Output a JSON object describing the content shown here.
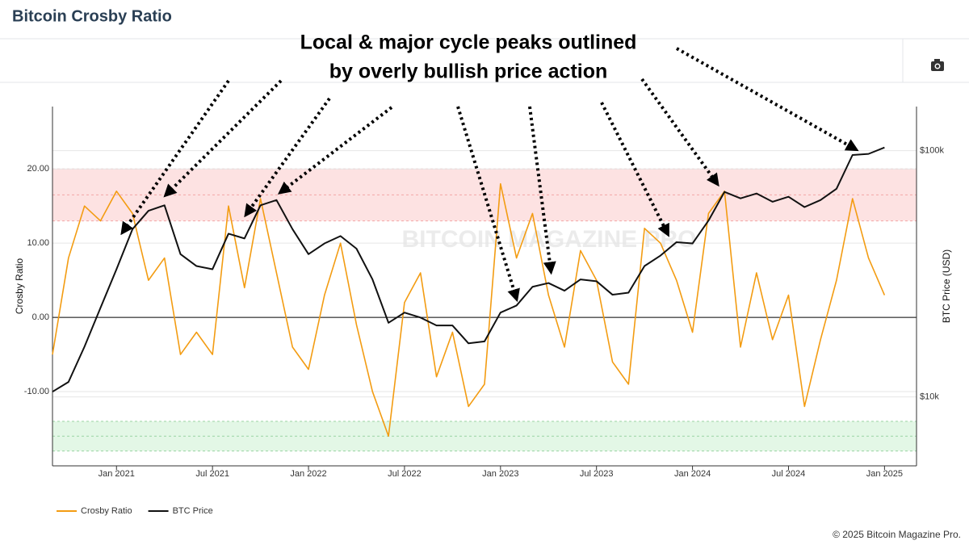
{
  "header": {
    "title": "Bitcoin Crosby Ratio"
  },
  "chart_data": {
    "type": "line",
    "annotation": [
      "Local & major cycle peaks outlined",
      "by overly bullish price action"
    ],
    "watermark": "BITCOIN MAGAZINE PRO",
    "y_label": "Crosby Ratio",
    "y2_label": "BTC Price (USD)",
    "x": [
      "2020-09",
      "2020-10",
      "2020-11",
      "2020-12",
      "2021-01",
      "2021-02",
      "2021-03",
      "2021-04",
      "2021-05",
      "2021-06",
      "2021-07",
      "2021-08",
      "2021-09",
      "2021-10",
      "2021-11",
      "2021-12",
      "2022-01",
      "2022-02",
      "2022-03",
      "2022-04",
      "2022-05",
      "2022-06",
      "2022-07",
      "2022-08",
      "2022-09",
      "2022-10",
      "2022-11",
      "2022-12",
      "2023-01",
      "2023-02",
      "2023-03",
      "2023-04",
      "2023-05",
      "2023-06",
      "2023-07",
      "2023-08",
      "2023-09",
      "2023-10",
      "2023-11",
      "2023-12",
      "2024-01",
      "2024-02",
      "2024-03",
      "2024-04",
      "2024-05",
      "2024-06",
      "2024-07",
      "2024-08",
      "2024-09",
      "2024-10",
      "2024-11",
      "2024-12",
      "2025-01"
    ],
    "xlim": [
      "2020-09",
      "2025-03"
    ],
    "xticks": [
      {
        "value": "2021-01",
        "label": "Jan 2021"
      },
      {
        "value": "2021-07",
        "label": "Jul 2021"
      },
      {
        "value": "2022-01",
        "label": "Jan 2022"
      },
      {
        "value": "2022-07",
        "label": "Jul 2022"
      },
      {
        "value": "2023-01",
        "label": "Jan 2023"
      },
      {
        "value": "2023-07",
        "label": "Jul 2023"
      },
      {
        "value": "2024-01",
        "label": "Jan 2024"
      },
      {
        "value": "2024-07",
        "label": "Jul 2024"
      },
      {
        "value": "2025-01",
        "label": "Jan 2025"
      }
    ],
    "ylim": [
      -20,
      28.4
    ],
    "yticks": [
      {
        "value": -10,
        "label": "-10.00"
      },
      {
        "value": 0,
        "label": "0.00"
      },
      {
        "value": 10,
        "label": "10.00"
      },
      {
        "value": 20,
        "label": "20.00"
      }
    ],
    "y2lim": [
      5250,
      151000
    ],
    "y2_log": true,
    "y2ticks": [
      {
        "value": 10000,
        "label": "$10k"
      },
      {
        "value": 100000,
        "label": "$100k"
      }
    ],
    "grid": true,
    "bands": [
      {
        "from": 13,
        "to": 20,
        "color": "#fde2e2",
        "edge": "#f3a6a6"
      },
      {
        "from": -18,
        "to": -14,
        "color": "#e3f7e6",
        "edge": "#9ad3a3"
      }
    ],
    "series": [
      {
        "name": "Crosby Ratio",
        "color": "#f39c12",
        "values": [
          -5,
          8,
          15,
          13,
          17,
          14,
          5,
          8,
          -5,
          -2,
          -5,
          15,
          4,
          16,
          6,
          -4,
          -7,
          3,
          10,
          -1,
          -10,
          -16,
          2,
          6,
          -8,
          -2,
          -12,
          -9,
          18,
          8,
          14,
          3,
          -4,
          9,
          5,
          -6,
          -9,
          12,
          10,
          5,
          -2,
          14,
          17,
          -4,
          6,
          -3,
          3,
          -12,
          -3,
          5,
          16,
          8,
          3
        ]
      },
      {
        "name": "BTC Price",
        "color": "#111111",
        "axis": "y2",
        "values": [
          10500,
          11500,
          16000,
          23000,
          33000,
          48000,
          57000,
          60000,
          38000,
          34000,
          33000,
          46000,
          44000,
          60000,
          63000,
          48000,
          38000,
          42000,
          45000,
          40000,
          30000,
          20000,
          22000,
          21000,
          19500,
          19500,
          16500,
          16800,
          22000,
          23500,
          28000,
          29000,
          27000,
          30000,
          29500,
          26000,
          26500,
          34000,
          37500,
          42500,
          42000,
          52000,
          68000,
          64000,
          67000,
          62000,
          65000,
          59000,
          63000,
          70000,
          96000,
          97000,
          103000
        ]
      }
    ],
    "legend": "bottom-left"
  },
  "footer": {
    "copyright": "© 2025 Bitcoin Magazine Pro."
  }
}
